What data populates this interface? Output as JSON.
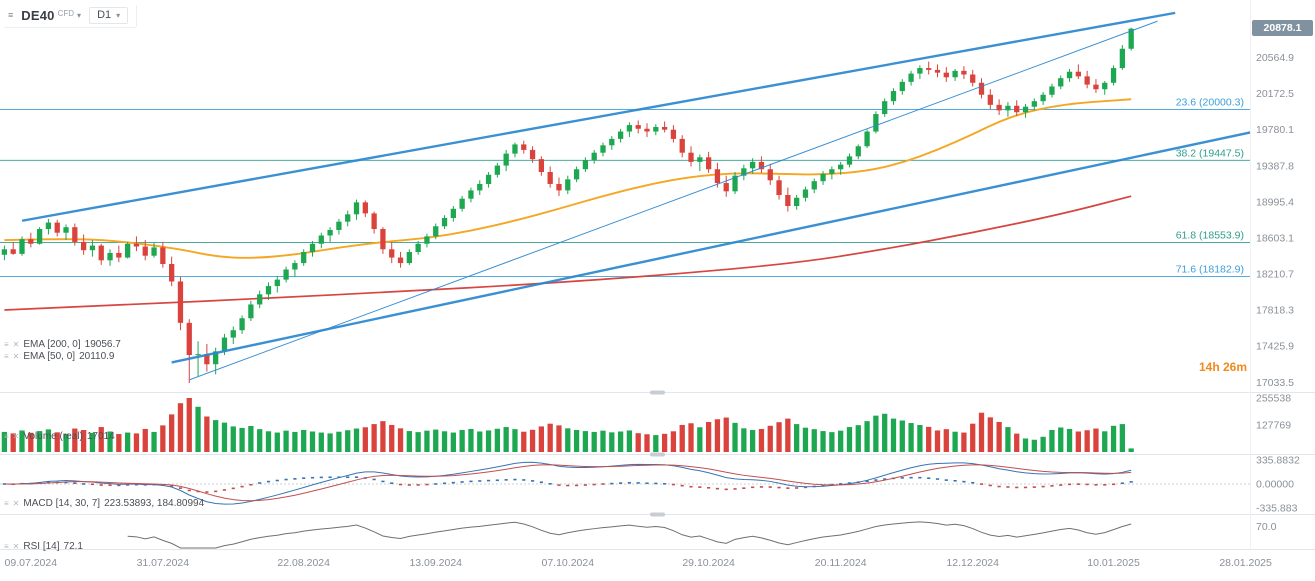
{
  "header": {
    "symbol": "DE40",
    "instrument_type": "CFD",
    "timeframe": "D1"
  },
  "price_badge": "20878.1",
  "countdown": "14h 26m",
  "indicators": {
    "ema200_label": "EMA [200, 0]",
    "ema200_value": "19056.7",
    "ema50_label": "EMA [50, 0]",
    "ema50_value": "20110.9",
    "volume_label": "Volume (real)",
    "volume_value": "17014",
    "macd_label": "MACD [14, 30, 7]",
    "macd_value": "223.53893, 184.80994",
    "rsi_label": "RSI [14]",
    "rsi_value": "72.1"
  },
  "colors": {
    "up": "#1da750",
    "down": "#d9433c",
    "trend": "#2a87d0",
    "ema50": "#f5a623",
    "ema200": "#d64540",
    "fib_blue": "#3b9fd8",
    "fib_teal": "#2f9e8e",
    "macd_line": "#3674b5",
    "macd_signal": "#c0504d",
    "hist_pos": "#3674b5",
    "hist_neg": "#c0504d",
    "rsi": "#707070",
    "axis_text": "#8a9099",
    "separator": "#e2e5e9",
    "handle": "#c8cdd3",
    "zero_line": "#b8c4cc"
  },
  "chart_data": {
    "type": "candlestick",
    "symbol": "DE40",
    "timeframe": "D1",
    "slots": 142,
    "price_range": [
      16950,
      21190
    ],
    "current_price": 20878.1,
    "price_axis_ticks": [
      20564.9,
      20172.5,
      19780.1,
      19387.8,
      18995.4,
      18603.1,
      18210.7,
      17818.3,
      17425.9,
      17033.5
    ],
    "date_ticks": [
      {
        "i": 3,
        "label": "09.07.2024"
      },
      {
        "i": 18,
        "label": "31.07.2024"
      },
      {
        "i": 34,
        "label": "22.08.2024"
      },
      {
        "i": 49,
        "label": "13.09.2024"
      },
      {
        "i": 64,
        "label": "07.10.2024"
      },
      {
        "i": 80,
        "label": "29.10.2024"
      },
      {
        "i": 95,
        "label": "20.11.2024"
      },
      {
        "i": 110,
        "label": "12.12.2024"
      },
      {
        "i": 126,
        "label": "10.01.2025"
      },
      {
        "i": 141,
        "label": "28.01.2025"
      }
    ],
    "fib_levels": [
      {
        "label": "23.6 (20000.3)",
        "price": 20000.3,
        "color": "#3b9fd8"
      },
      {
        "label": "38.2 (19447.5)",
        "price": 19447.5,
        "color": "#2f9e8e"
      },
      {
        "label": "61.8 (18553.9)",
        "price": 18553.9,
        "color": "#2f9e8e"
      },
      {
        "label": "71.6 (18182.9)",
        "price": 18182.9,
        "color": "#3b9fd8"
      }
    ],
    "trendlines": [
      {
        "i1": 2,
        "p1": 18790,
        "i2": 133,
        "p2": 21050,
        "w": 2.4
      },
      {
        "i1": 19,
        "p1": 17250,
        "i2": 142,
        "p2": 19760,
        "w": 2.4
      },
      {
        "i1": 21,
        "p1": 17060,
        "i2": 131,
        "p2": 20960,
        "w": 1
      }
    ],
    "ema50_points": [
      [
        0,
        18580
      ],
      [
        8,
        18600
      ],
      [
        14,
        18560
      ],
      [
        20,
        18480
      ],
      [
        24,
        18400
      ],
      [
        28,
        18380
      ],
      [
        33,
        18420
      ],
      [
        38,
        18500
      ],
      [
        43,
        18560
      ],
      [
        48,
        18600
      ],
      [
        53,
        18680
      ],
      [
        58,
        18790
      ],
      [
        63,
        18920
      ],
      [
        68,
        19060
      ],
      [
        73,
        19180
      ],
      [
        78,
        19270
      ],
      [
        83,
        19310
      ],
      [
        88,
        19300
      ],
      [
        93,
        19290
      ],
      [
        98,
        19330
      ],
      [
        102,
        19420
      ],
      [
        106,
        19560
      ],
      [
        110,
        19730
      ],
      [
        113,
        19870
      ],
      [
        116,
        19970
      ],
      [
        119,
        20030
      ],
      [
        122,
        20070
      ],
      [
        125,
        20090
      ],
      [
        128,
        20111
      ]
    ],
    "ema200_points": [
      [
        0,
        17820
      ],
      [
        15,
        17880
      ],
      [
        30,
        17950
      ],
      [
        45,
        18020
      ],
      [
        60,
        18100
      ],
      [
        75,
        18200
      ],
      [
        90,
        18330
      ],
      [
        100,
        18480
      ],
      [
        110,
        18660
      ],
      [
        120,
        18860
      ],
      [
        128,
        19057
      ]
    ],
    "volume_max": 255538,
    "volume_axis_ticks": [
      {
        "v": 255538,
        "label": "255538"
      },
      {
        "v": 127769,
        "label": "127769"
      }
    ],
    "macd": {
      "fast": 14,
      "slow": 30,
      "signal": 7,
      "range": 335.8832,
      "axis_ticks": [
        {
          "v": 335.8832,
          "label": "335.8832"
        },
        {
          "v": 0,
          "label": "0.00000"
        },
        {
          "v": -335.883,
          "label": "-335.883"
        }
      ]
    },
    "rsi": {
      "period": 14,
      "current": 72.1,
      "axis_ticks": [
        {
          "v": 70,
          "label": "70.0"
        }
      ]
    },
    "candles": [
      [
        18420,
        18520,
        18360,
        18480,
        95000
      ],
      [
        18480,
        18560,
        18420,
        18430,
        88000
      ],
      [
        18430,
        18620,
        18410,
        18590,
        102000
      ],
      [
        18590,
        18660,
        18500,
        18540,
        91000
      ],
      [
        18540,
        18720,
        18530,
        18700,
        99000
      ],
      [
        18700,
        18810,
        18640,
        18770,
        107000
      ],
      [
        18770,
        18800,
        18620,
        18660,
        93000
      ],
      [
        18660,
        18750,
        18580,
        18720,
        86000
      ],
      [
        18720,
        18760,
        18520,
        18560,
        111000
      ],
      [
        18560,
        18640,
        18420,
        18470,
        104000
      ],
      [
        18470,
        18580,
        18400,
        18520,
        90000
      ],
      [
        18520,
        18540,
        18310,
        18360,
        118000
      ],
      [
        18360,
        18480,
        18300,
        18440,
        97000
      ],
      [
        18440,
        18520,
        18340,
        18390,
        85000
      ],
      [
        18390,
        18560,
        18380,
        18540,
        92000
      ],
      [
        18540,
        18620,
        18460,
        18510,
        88000
      ],
      [
        18510,
        18580,
        18360,
        18410,
        109000
      ],
      [
        18410,
        18550,
        18390,
        18500,
        95000
      ],
      [
        18500,
        18560,
        18280,
        18320,
        126000
      ],
      [
        18320,
        18400,
        18080,
        18130,
        178000
      ],
      [
        18130,
        18180,
        17600,
        17680,
        231000
      ],
      [
        17680,
        17720,
        17025,
        17330,
        255538
      ],
      [
        17330,
        17480,
        17100,
        17340,
        214000
      ],
      [
        17340,
        17450,
        17150,
        17230,
        168000
      ],
      [
        17230,
        17410,
        17120,
        17370,
        151000
      ],
      [
        17370,
        17560,
        17330,
        17520,
        139000
      ],
      [
        17520,
        17640,
        17450,
        17600,
        121000
      ],
      [
        17600,
        17760,
        17560,
        17730,
        114000
      ],
      [
        17730,
        17920,
        17700,
        17880,
        123000
      ],
      [
        17880,
        18030,
        17840,
        17990,
        108000
      ],
      [
        17990,
        18120,
        17930,
        18080,
        98000
      ],
      [
        18080,
        18190,
        18010,
        18150,
        92000
      ],
      [
        18150,
        18290,
        18120,
        18260,
        101000
      ],
      [
        18260,
        18360,
        18180,
        18330,
        95000
      ],
      [
        18330,
        18480,
        18300,
        18450,
        104000
      ],
      [
        18450,
        18570,
        18400,
        18540,
        97000
      ],
      [
        18540,
        18660,
        18490,
        18630,
        92000
      ],
      [
        18630,
        18720,
        18560,
        18690,
        88000
      ],
      [
        18690,
        18810,
        18640,
        18780,
        96000
      ],
      [
        18780,
        18900,
        18730,
        18860,
        103000
      ],
      [
        18860,
        19020,
        18800,
        18990,
        111000
      ],
      [
        18990,
        19010,
        18830,
        18870,
        117000
      ],
      [
        18870,
        18890,
        18650,
        18700,
        132000
      ],
      [
        18700,
        18720,
        18430,
        18480,
        146000
      ],
      [
        18480,
        18560,
        18330,
        18390,
        128000
      ],
      [
        18390,
        18450,
        18280,
        18330,
        112000
      ],
      [
        18330,
        18480,
        18310,
        18450,
        99000
      ],
      [
        18450,
        18570,
        18420,
        18540,
        94000
      ],
      [
        18540,
        18650,
        18500,
        18620,
        101000
      ],
      [
        18620,
        18760,
        18590,
        18730,
        106000
      ],
      [
        18730,
        18850,
        18700,
        18820,
        98000
      ],
      [
        18820,
        18950,
        18780,
        18920,
        92000
      ],
      [
        18920,
        19060,
        18890,
        19030,
        104000
      ],
      [
        19030,
        19150,
        18990,
        19120,
        109000
      ],
      [
        19120,
        19230,
        19070,
        19190,
        97000
      ],
      [
        19190,
        19320,
        19150,
        19290,
        102000
      ],
      [
        19290,
        19420,
        19260,
        19390,
        110000
      ],
      [
        19390,
        19560,
        19330,
        19520,
        118000
      ],
      [
        19520,
        19640,
        19480,
        19620,
        108000
      ],
      [
        19620,
        19660,
        19520,
        19560,
        96000
      ],
      [
        19560,
        19600,
        19420,
        19460,
        105000
      ],
      [
        19460,
        19490,
        19280,
        19320,
        121000
      ],
      [
        19320,
        19380,
        19150,
        19190,
        134000
      ],
      [
        19190,
        19260,
        19060,
        19120,
        126000
      ],
      [
        19120,
        19280,
        19080,
        19240,
        112000
      ],
      [
        19240,
        19380,
        19210,
        19350,
        104000
      ],
      [
        19350,
        19480,
        19320,
        19450,
        99000
      ],
      [
        19450,
        19560,
        19410,
        19530,
        95000
      ],
      [
        19530,
        19640,
        19490,
        19610,
        101000
      ],
      [
        19610,
        19710,
        19560,
        19680,
        93000
      ],
      [
        19680,
        19790,
        19640,
        19760,
        97000
      ],
      [
        19760,
        19860,
        19700,
        19830,
        102000
      ],
      [
        19830,
        19880,
        19740,
        19790,
        89000
      ],
      [
        19790,
        19850,
        19700,
        19760,
        84000
      ],
      [
        19760,
        19840,
        19720,
        19810,
        80000
      ],
      [
        19810,
        19870,
        19750,
        19780,
        86000
      ],
      [
        19780,
        19830,
        19640,
        19680,
        98000
      ],
      [
        19680,
        19720,
        19480,
        19530,
        128000
      ],
      [
        19530,
        19600,
        19380,
        19430,
        136000
      ],
      [
        19430,
        19510,
        19330,
        19480,
        117000
      ],
      [
        19480,
        19540,
        19310,
        19350,
        142000
      ],
      [
        19350,
        19420,
        19150,
        19200,
        155000
      ],
      [
        19200,
        19280,
        19050,
        19110,
        163000
      ],
      [
        19110,
        19320,
        19080,
        19280,
        138000
      ],
      [
        19280,
        19400,
        19230,
        19360,
        112000
      ],
      [
        19360,
        19470,
        19300,
        19430,
        104000
      ],
      [
        19430,
        19490,
        19310,
        19350,
        109000
      ],
      [
        19350,
        19410,
        19180,
        19230,
        124000
      ],
      [
        19230,
        19280,
        19020,
        19070,
        141000
      ],
      [
        19070,
        19150,
        18890,
        18950,
        158000
      ],
      [
        18950,
        19070,
        18910,
        19040,
        132000
      ],
      [
        19040,
        19160,
        19000,
        19130,
        115000
      ],
      [
        19130,
        19250,
        19090,
        19220,
        108000
      ],
      [
        19220,
        19330,
        19180,
        19300,
        99000
      ],
      [
        19300,
        19380,
        19240,
        19350,
        94000
      ],
      [
        19350,
        19430,
        19290,
        19400,
        101000
      ],
      [
        19400,
        19520,
        19370,
        19490,
        118000
      ],
      [
        19490,
        19620,
        19460,
        19600,
        127000
      ],
      [
        19600,
        19780,
        19580,
        19760,
        146000
      ],
      [
        19760,
        19980,
        19740,
        19950,
        172000
      ],
      [
        19950,
        20120,
        19920,
        20090,
        181000
      ],
      [
        20090,
        20230,
        20050,
        20200,
        158000
      ],
      [
        20200,
        20330,
        20160,
        20300,
        149000
      ],
      [
        20300,
        20420,
        20260,
        20390,
        137000
      ],
      [
        20390,
        20480,
        20330,
        20450,
        128000
      ],
      [
        20450,
        20520,
        20380,
        20430,
        119000
      ],
      [
        20430,
        20490,
        20350,
        20400,
        102000
      ],
      [
        20400,
        20460,
        20300,
        20350,
        108000
      ],
      [
        20350,
        20440,
        20310,
        20420,
        96000
      ],
      [
        20420,
        20470,
        20330,
        20380,
        92000
      ],
      [
        20380,
        20430,
        20250,
        20290,
        134000
      ],
      [
        20290,
        20340,
        20120,
        20160,
        186000
      ],
      [
        20160,
        20220,
        20000,
        20050,
        164000
      ],
      [
        20050,
        20110,
        19940,
        19990,
        142000
      ],
      [
        19990,
        20080,
        19920,
        20040,
        118000
      ],
      [
        20040,
        20100,
        19930,
        19970,
        87000
      ],
      [
        19970,
        20060,
        19910,
        20030,
        64000
      ],
      [
        20030,
        20120,
        19990,
        20090,
        58000
      ],
      [
        20090,
        20190,
        20050,
        20160,
        72000
      ],
      [
        20160,
        20280,
        20130,
        20250,
        104000
      ],
      [
        20250,
        20370,
        20220,
        20340,
        116000
      ],
      [
        20340,
        20440,
        20300,
        20410,
        109000
      ],
      [
        20410,
        20490,
        20330,
        20360,
        97000
      ],
      [
        20360,
        20420,
        20230,
        20270,
        103000
      ],
      [
        20270,
        20330,
        20180,
        20220,
        111000
      ],
      [
        20220,
        20310,
        20160,
        20290,
        98000
      ],
      [
        20290,
        20480,
        20260,
        20450,
        124000
      ],
      [
        20450,
        20700,
        20430,
        20660,
        132000
      ],
      [
        20660,
        20890,
        20640,
        20878,
        17014
      ]
    ]
  }
}
